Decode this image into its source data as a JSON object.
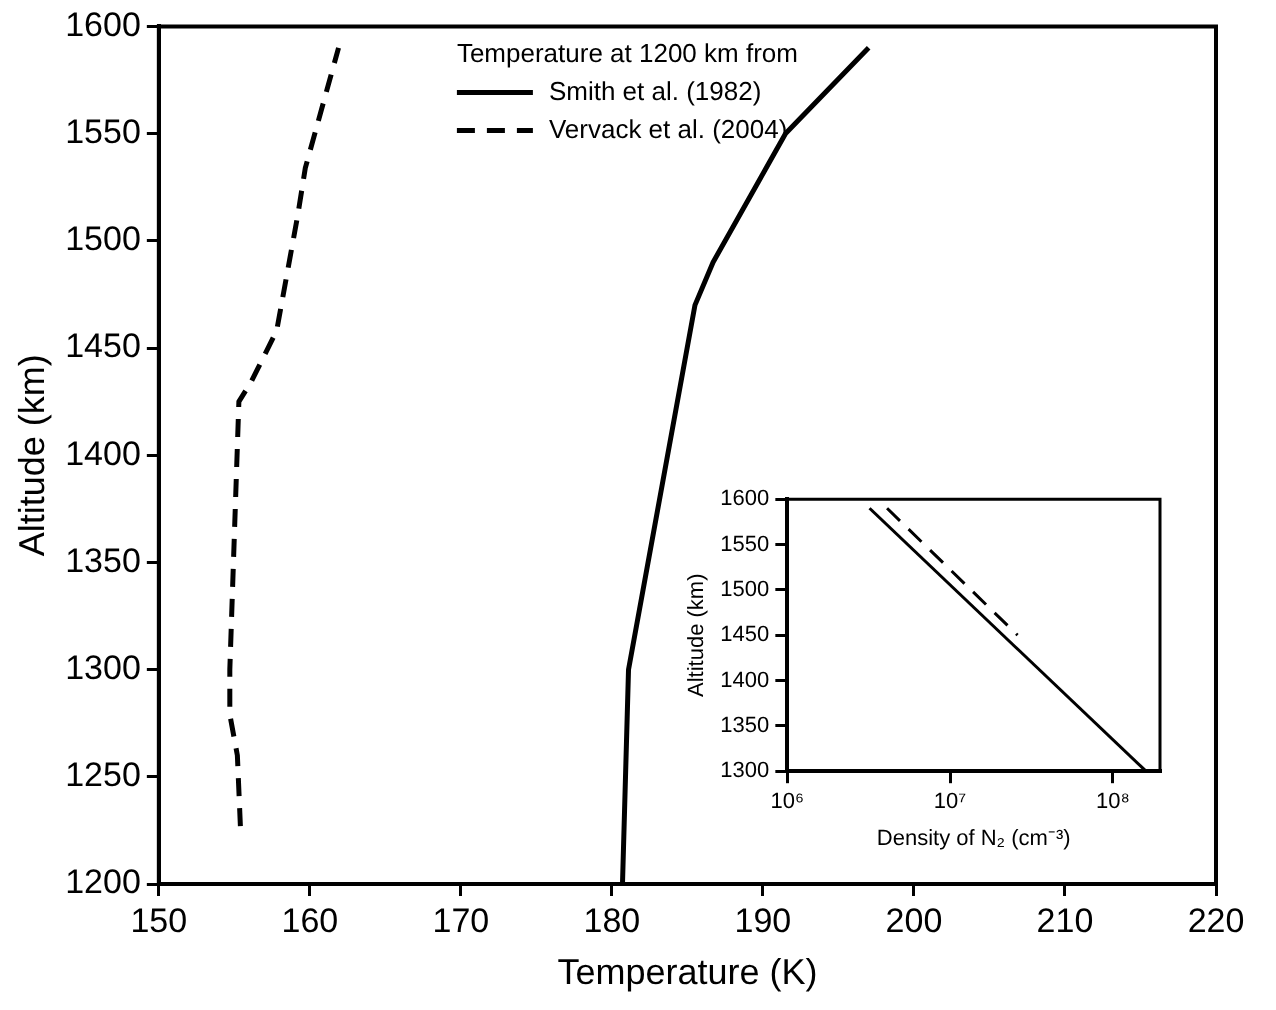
{
  "chart_data": [
    {
      "type": "line",
      "xlabel": "Temperature (K)",
      "ylabel": "Altitude (km)",
      "legend_title": "Temperature at 1200 km from",
      "legend": "top",
      "marker": "none",
      "grid": false,
      "xlim": [
        150,
        220
      ],
      "xticks": [
        150,
        160,
        170,
        180,
        190,
        200,
        210,
        220
      ],
      "ylim": [
        1200,
        1600
      ],
      "yticks": [
        1200,
        1250,
        1300,
        1350,
        1400,
        1450,
        1500,
        1550,
        1600
      ],
      "series": [
        {
          "name": "Smith et al. (1982)",
          "color": "#000000",
          "line_style": "solid",
          "x": [
            180.7,
            181.1,
            185.5,
            186.7,
            191.5,
            197
          ],
          "values": [
            1200,
            1300,
            1470,
            1490,
            1550,
            1590
          ]
        },
        {
          "name": "Vervack et al. (2004)",
          "color": "#000000",
          "line_style": "dashed",
          "x": [
            155.4,
            155.2,
            154.7,
            154.7,
            155.3,
            156.1,
            157.8,
            159.2,
            159.7,
            161.9
          ],
          "values": [
            1227,
            1260,
            1279,
            1300,
            1425,
            1434,
            1458,
            1512,
            1534,
            1590
          ]
        }
      ]
    },
    {
      "type": "line",
      "xlabel": "Density of N₂ (cm⁻³)",
      "ylabel": "Altitude (km)",
      "log": "x",
      "marker": "none",
      "grid": false,
      "xlim": [
        1000000,
        195000000
      ],
      "xticks": [
        {
          "value": 1000000,
          "label": "10⁶"
        },
        {
          "value": 10000000,
          "label": "10⁷"
        },
        {
          "value": 100000000,
          "label": "10⁸"
        }
      ],
      "ylim": [
        1300,
        1600
      ],
      "yticks": [
        1300,
        1350,
        1400,
        1450,
        1500,
        1550,
        1600
      ],
      "series": [
        {
          "color": "#000000",
          "line_style": "solid",
          "x": [
            3200000,
            160000000
          ],
          "values": [
            1590,
            1300
          ]
        },
        {
          "color": "#000000",
          "line_style": "dashed",
          "x": [
            4100000,
            26000000
          ],
          "values": [
            1590,
            1450
          ]
        }
      ]
    }
  ]
}
